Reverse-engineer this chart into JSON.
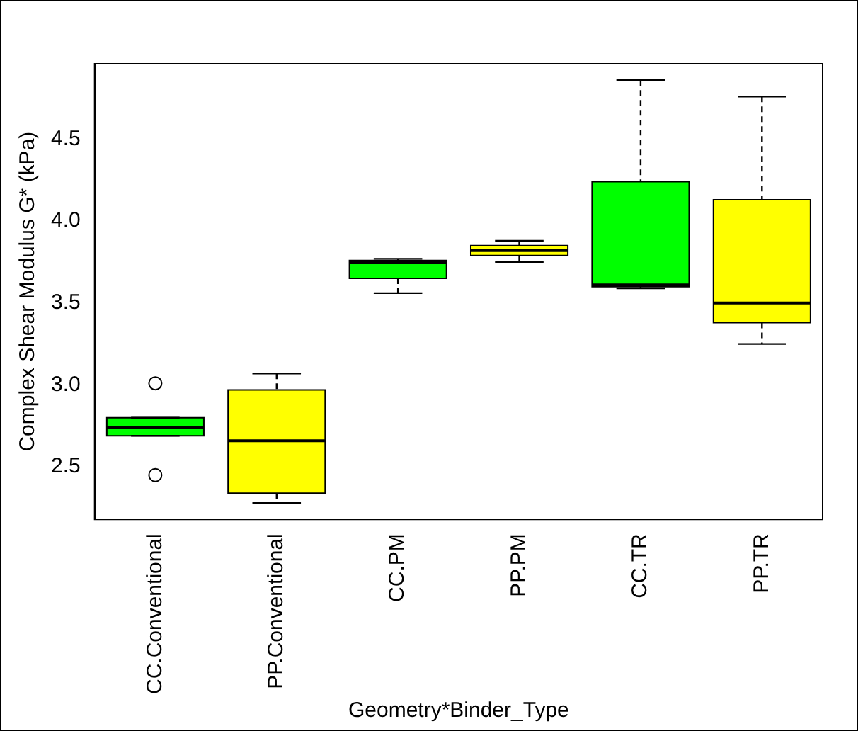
{
  "chart_data": {
    "type": "box",
    "xlabel": "Geometry*Binder_Type",
    "ylabel": "Complex Shear Modulus G* (kPa)",
    "categories": [
      "CC.Conventional",
      "PP.Conventional",
      "CC.PM",
      "PP.PM",
      "CC.TR",
      "PP.TR"
    ],
    "colors": [
      "#00ff00",
      "#ffff00",
      "#00ff00",
      "#ffff00",
      "#00ff00",
      "#ffff00"
    ],
    "boxes": [
      {
        "low": 2.69,
        "q1": 2.69,
        "median": 2.74,
        "q3": 2.8,
        "high": 2.8,
        "outliers": [
          3.01,
          2.45
        ]
      },
      {
        "low": 2.28,
        "q1": 2.34,
        "median": 2.66,
        "q3": 2.97,
        "high": 3.07
      },
      {
        "low": 3.56,
        "q1": 3.65,
        "median": 3.745,
        "q3": 3.76,
        "high": 3.77
      },
      {
        "low": 3.75,
        "q1": 3.79,
        "median": 3.82,
        "q3": 3.85,
        "high": 3.88
      },
      {
        "low": 3.59,
        "q1": 3.6,
        "median": 3.61,
        "q3": 4.24,
        "high": 4.86
      },
      {
        "low": 3.25,
        "q1": 3.38,
        "median": 3.5,
        "q3": 4.13,
        "high": 4.76
      }
    ],
    "ylim": [
      2.18,
      4.96
    ],
    "yticks": [
      2.5,
      {
        "value": 3,
        "label": "3.0"
      },
      3.5,
      {
        "value": 4,
        "label": "4.0"
      },
      4.5
    ]
  }
}
